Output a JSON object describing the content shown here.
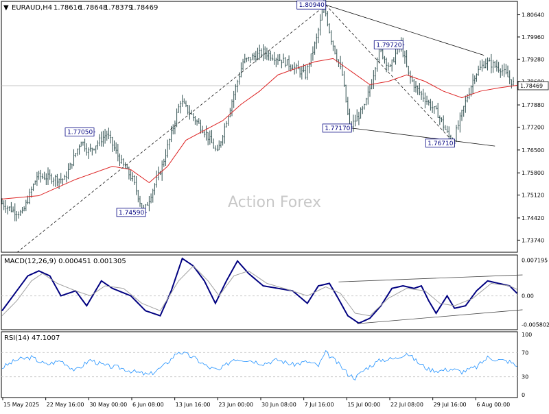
{
  "header": {
    "arrow": "▼",
    "symbol": "EURAUD,H4",
    "open": "1.78616",
    "high": "1.78648",
    "low": "1.78379",
    "close": "1.78469"
  },
  "watermark": "Action Forex",
  "colors": {
    "candle": "#2f4f4f",
    "ma": "#dd2222",
    "trend": "#111111",
    "channel": "#444444",
    "macd_main": "#000080",
    "macd_signal": "#a0a0a0",
    "rsi": "#1e90ff",
    "grid": "#cccccc",
    "label_border": "#000080",
    "label_text": "#000080"
  },
  "chart_data": [
    {
      "type": "candlestick",
      "panel": "price",
      "title": "EURAUD,H4",
      "ylim": [
        1.7337,
        1.8105
      ],
      "y_ticks": [
        "1.80640",
        "1.79960",
        "1.79280",
        "1.78600",
        "1.77880",
        "1.77200",
        "1.76500",
        "1.75800",
        "1.75120",
        "1.74420",
        "1.73740"
      ],
      "current_price": "1.78469",
      "bars": 214,
      "anchors": [
        [
          0,
          1.749
        ],
        [
          7,
          1.7465
        ],
        [
          12,
          1.7455
        ],
        [
          20,
          1.757
        ],
        [
          35,
          1.756
        ],
        [
          44,
          1.768
        ],
        [
          48,
          1.7645
        ],
        [
          58,
          1.77
        ],
        [
          66,
          1.761
        ],
        [
          72,
          1.756
        ],
        [
          78,
          1.7459
        ],
        [
          88,
          1.76
        ],
        [
          98,
          1.78
        ],
        [
          112,
          1.77
        ],
        [
          118,
          1.764
        ],
        [
          132,
          1.792
        ],
        [
          143,
          1.795
        ],
        [
          155,
          1.792
        ],
        [
          166,
          1.788
        ],
        [
          172,
          1.799
        ],
        [
          176,
          1.8094
        ],
        [
          180,
          1.799
        ],
        [
          186,
          1.788
        ],
        [
          190,
          1.7717
        ],
        [
          198,
          1.778
        ],
        [
          202,
          1.786
        ],
        [
          206,
          1.796
        ],
        [
          208,
          1.794
        ],
        [
          212,
          1.79
        ],
        [
          216,
          1.796
        ],
        [
          218,
          1.7972
        ],
        [
          222,
          1.788
        ],
        [
          226,
          1.784
        ],
        [
          232,
          1.78
        ],
        [
          238,
          1.776
        ],
        [
          244,
          1.769
        ],
        [
          246,
          1.7671
        ],
        [
          252,
          1.778
        ],
        [
          258,
          1.788
        ],
        [
          264,
          1.792
        ],
        [
          272,
          1.79
        ],
        [
          280,
          1.7847
        ]
      ],
      "moving_average": [
        [
          0,
          1.75
        ],
        [
          20,
          1.751
        ],
        [
          40,
          1.756
        ],
        [
          60,
          1.76
        ],
        [
          70,
          1.759
        ],
        [
          80,
          1.755
        ],
        [
          90,
          1.76
        ],
        [
          100,
          1.768
        ],
        [
          110,
          1.771
        ],
        [
          120,
          1.774
        ],
        [
          130,
          1.779
        ],
        [
          140,
          1.783
        ],
        [
          150,
          1.788
        ],
        [
          160,
          1.79
        ],
        [
          170,
          1.792
        ],
        [
          180,
          1.793
        ],
        [
          190,
          1.789
        ],
        [
          200,
          1.785
        ],
        [
          210,
          1.786
        ],
        [
          220,
          1.788
        ],
        [
          230,
          1.786
        ],
        [
          240,
          1.783
        ],
        [
          250,
          1.781
        ],
        [
          260,
          1.783
        ],
        [
          270,
          1.784
        ],
        [
          280,
          1.7848
        ]
      ],
      "annotations": [
        {
          "label": "1.77050",
          "bar": 50,
          "value": 1.7705,
          "text_pos": "left"
        },
        {
          "label": "1.74590",
          "bar": 78,
          "value": 1.7459,
          "text_pos": "left"
        },
        {
          "label": "1.80940",
          "bar": 176,
          "value": 1.8094,
          "text_pos": "left"
        },
        {
          "label": "1.77170",
          "bar": 190,
          "value": 1.7717,
          "text_pos": "left"
        },
        {
          "label": "1.79720",
          "bar": 218,
          "value": 1.7972,
          "text_pos": "left"
        },
        {
          "label": "1.76710",
          "bar": 246,
          "value": 1.7671,
          "text_pos": "left"
        }
      ],
      "trendlines": [
        {
          "style": "dashed",
          "points": [
            [
              8,
              1.7336
            ],
            [
              176,
              1.8094
            ]
          ]
        },
        {
          "style": "dashed",
          "points": [
            [
              176,
              1.8094
            ],
            [
              246,
              1.7671
            ]
          ]
        },
        {
          "style": "solid",
          "points": [
            [
              176,
              1.8094
            ],
            [
              262,
              1.794
            ]
          ]
        },
        {
          "style": "solid",
          "points": [
            [
              190,
              1.7717
            ],
            [
              268,
              1.7662
            ]
          ]
        }
      ],
      "watermark": "Action Forex"
    },
    {
      "type": "line",
      "panel": "macd",
      "title": "MACD(12,26,9) 0.000451 0.001305",
      "ylim": [
        -0.0068,
        0.0082
      ],
      "y_ticks": [
        "0.007195",
        "0.00",
        "-0.005802"
      ],
      "series": [
        {
          "role": "main",
          "points": [
            [
              0,
              -0.003
            ],
            [
              4,
              -0.001
            ],
            [
              8,
              0.001
            ],
            [
              14,
              0.004
            ],
            [
              20,
              0.005
            ],
            [
              26,
              0.004
            ],
            [
              32,
              0.0
            ],
            [
              40,
              0.001
            ],
            [
              46,
              -0.002
            ],
            [
              54,
              0.003
            ],
            [
              60,
              0.0015
            ],
            [
              70,
              0.0
            ],
            [
              78,
              -0.003
            ],
            [
              86,
              -0.004
            ],
            [
              92,
              0.001
            ],
            [
              98,
              0.0075
            ],
            [
              104,
              0.006
            ],
            [
              110,
              0.003
            ],
            [
              116,
              -0.0015
            ],
            [
              122,
              0.003
            ],
            [
              128,
              0.007
            ],
            [
              134,
              0.0045
            ],
            [
              142,
              0.002
            ],
            [
              150,
              0.0015
            ],
            [
              158,
              0.001
            ],
            [
              166,
              -0.0015
            ],
            [
              172,
              0.002
            ],
            [
              178,
              0.0025
            ],
            [
              182,
              0.0
            ],
            [
              188,
              -0.004
            ],
            [
              194,
              -0.0055
            ],
            [
              200,
              -0.0045
            ],
            [
              206,
              -0.002
            ],
            [
              212,
              0.0015
            ],
            [
              218,
              0.002
            ],
            [
              224,
              0.0015
            ],
            [
              228,
              0.002
            ],
            [
              232,
              -0.001
            ],
            [
              236,
              -0.0035
            ],
            [
              242,
              0.0
            ],
            [
              246,
              -0.0025
            ],
            [
              252,
              -0.002
            ],
            [
              258,
              0.001
            ],
            [
              264,
              0.003
            ],
            [
              270,
              0.0025
            ],
            [
              276,
              0.002
            ],
            [
              280,
              0.0005
            ]
          ]
        },
        {
          "role": "signal",
          "points": [
            [
              0,
              -0.004
            ],
            [
              8,
              -0.001
            ],
            [
              16,
              0.003
            ],
            [
              22,
              0.0045
            ],
            [
              30,
              0.0025
            ],
            [
              40,
              0.001
            ],
            [
              48,
              0.0
            ],
            [
              56,
              0.002
            ],
            [
              66,
              0.0015
            ],
            [
              76,
              -0.0015
            ],
            [
              86,
              -0.003
            ],
            [
              96,
              0.003
            ],
            [
              104,
              0.006
            ],
            [
              112,
              0.003
            ],
            [
              118,
              0.0
            ],
            [
              126,
              0.004
            ],
            [
              134,
              0.005
            ],
            [
              144,
              0.0025
            ],
            [
              156,
              0.0012
            ],
            [
              166,
              0.0
            ],
            [
              176,
              0.0018
            ],
            [
              184,
              0.0005
            ],
            [
              192,
              -0.0035
            ],
            [
              200,
              -0.004
            ],
            [
              210,
              -0.0005
            ],
            [
              220,
              0.0015
            ],
            [
              230,
              0.001
            ],
            [
              238,
              -0.0015
            ],
            [
              246,
              -0.002
            ],
            [
              256,
              -0.0005
            ],
            [
              266,
              0.0025
            ],
            [
              276,
              0.002
            ],
            [
              280,
              0.0013
            ]
          ]
        }
      ],
      "channel": [
        {
          "points": [
            [
              183,
              0.0028
            ],
            [
              283,
              0.0042
            ]
          ]
        },
        {
          "points": [
            [
              193,
              -0.0056
            ],
            [
              283,
              -0.0028
            ]
          ]
        }
      ]
    },
    {
      "type": "line",
      "panel": "rsi",
      "title": "RSI(14) 47.1007",
      "ylim": [
        0,
        100
      ],
      "y_ticks": [
        "100",
        "70",
        "30",
        "0"
      ],
      "levels": [
        70,
        30
      ],
      "series": [
        {
          "role": "rsi",
          "points": [
            [
              0,
              45
            ],
            [
              8,
              58
            ],
            [
              16,
              62
            ],
            [
              24,
              50
            ],
            [
              32,
              57
            ],
            [
              40,
              40
            ],
            [
              48,
              58
            ],
            [
              56,
              48
            ],
            [
              64,
              45
            ],
            [
              72,
              38
            ],
            [
              80,
              33
            ],
            [
              88,
              48
            ],
            [
              96,
              72
            ],
            [
              104,
              62
            ],
            [
              112,
              46
            ],
            [
              118,
              40
            ],
            [
              126,
              60
            ],
            [
              134,
              58
            ],
            [
              142,
              52
            ],
            [
              150,
              58
            ],
            [
              158,
              50
            ],
            [
              166,
              55
            ],
            [
              172,
              48
            ],
            [
              176,
              70
            ],
            [
              182,
              54
            ],
            [
              188,
              35
            ],
            [
              192,
              28
            ],
            [
              198,
              44
            ],
            [
              206,
              58
            ],
            [
              214,
              60
            ],
            [
              220,
              70
            ],
            [
              226,
              54
            ],
            [
              232,
              42
            ],
            [
              238,
              40
            ],
            [
              244,
              43
            ],
            [
              250,
              38
            ],
            [
              258,
              46
            ],
            [
              264,
              62
            ],
            [
              270,
              58
            ],
            [
              276,
              55
            ],
            [
              280,
              47.1
            ]
          ]
        }
      ]
    },
    {
      "type": "axis",
      "panel": "time",
      "x_ticks": [
        "15 May 2025",
        "22 May 16:00",
        "30 May 00:00",
        "6 Jun 08:00",
        "13 Jun 16:00",
        "23 Jun 00:00",
        "30 Jun 08:00",
        "7 Jul 16:00",
        "15 Jul 00:00",
        "22 Jul 08:00",
        "29 Jul 16:00",
        "6 Aug 00:00"
      ]
    }
  ]
}
